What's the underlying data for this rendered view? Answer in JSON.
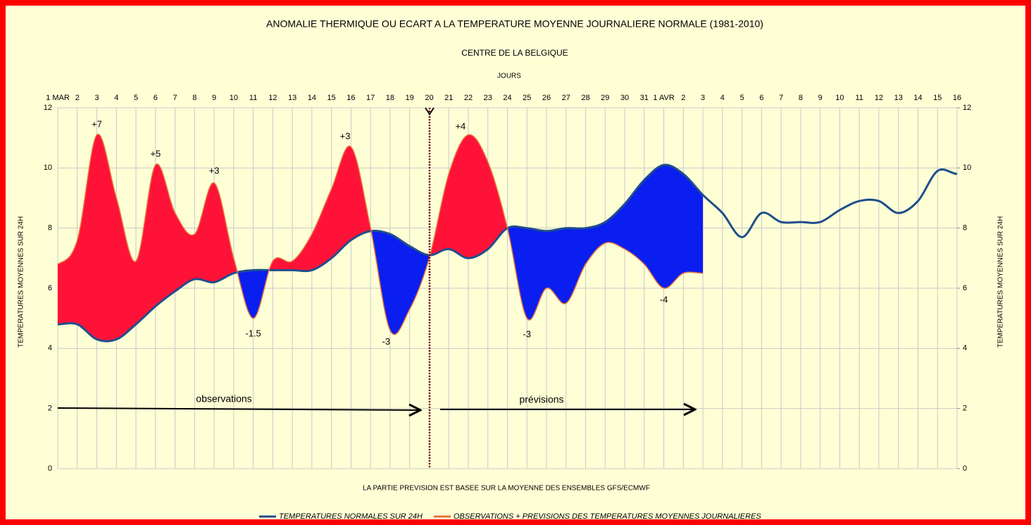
{
  "chart_data": {
    "type": "line",
    "title": "ANOMALIE THERMIQUE OU ECART A LA TEMPERATURE MOYENNE JOURNALIERE NORMALE (1981-2010)",
    "subtitle": "CENTRE DE LA BELGIQUE",
    "xlabel": "JOURS",
    "ylabel": "TEMPERATURES MOYENNES SUR 24H",
    "y2label": "TEMPERATURES MOYENNES SUR 24H",
    "footnote": "LA PARTIE PREVISION EST BASEE SUR LA MOYENNE DES ENSEMBLES GFS/ECMWF",
    "categories": [
      "1 MAR",
      "2",
      "3",
      "4",
      "5",
      "6",
      "7",
      "8",
      "9",
      "10",
      "11",
      "12",
      "13",
      "14",
      "15",
      "16",
      "17",
      "18",
      "19",
      "20",
      "21",
      "22",
      "23",
      "24",
      "25",
      "26",
      "27",
      "28",
      "29",
      "30",
      "31",
      "1 AVR",
      "2",
      "3",
      "4",
      "5",
      "6",
      "7",
      "8",
      "9",
      "10",
      "11",
      "12",
      "13",
      "14",
      "15",
      "16"
    ],
    "series": [
      {
        "name": "TEMPERATURES NORMALES SUR 24H",
        "color": "#1f4e8c",
        "values": [
          4.8,
          4.8,
          4.3,
          4.3,
          4.8,
          5.4,
          5.9,
          6.3,
          6.2,
          6.5,
          6.6,
          6.6,
          6.6,
          6.6,
          7.0,
          7.6,
          7.9,
          7.8,
          7.4,
          7.1,
          7.3,
          7.0,
          7.3,
          8.0,
          8.0,
          7.9,
          8.0,
          8.0,
          8.2,
          8.8,
          9.6,
          10.1,
          9.8,
          9.1,
          8.5,
          7.7,
          8.5,
          8.2,
          8.2,
          8.2,
          8.6,
          8.9,
          8.9,
          8.5,
          8.9,
          9.9,
          9.8
        ]
      },
      {
        "name": "OBSERVATIONS + PREVISIONS DES TEMPERATURES MOYENNES JOURNALIERES",
        "color": "#e8743b",
        "values": [
          6.8,
          7.6,
          11.1,
          9.0,
          6.9,
          10.1,
          8.5,
          7.8,
          9.5,
          7.0,
          5.0,
          6.9,
          6.9,
          7.8,
          9.3,
          10.7,
          8.0,
          4.6,
          5.3,
          7.0,
          9.8,
          11.1,
          10.2,
          8.0,
          5.0,
          6.0,
          5.5,
          6.8,
          7.5,
          7.3,
          6.8,
          6.0,
          6.5,
          6.5,
          null,
          null,
          null,
          null,
          null,
          null,
          null,
          null,
          null,
          null,
          null,
          null,
          null
        ]
      }
    ],
    "positive_fill": "#ff1238",
    "negative_fill": "#0a1ef0",
    "ylim": [
      0,
      12
    ],
    "yticks": [
      0,
      2,
      4,
      6,
      8,
      10,
      12
    ],
    "y2lim": [
      0,
      12
    ],
    "y2ticks": [
      0,
      2,
      4,
      6,
      8,
      10,
      12
    ],
    "grid": true,
    "annotations": [
      {
        "text": "+7",
        "x": 2,
        "y": 11.44,
        "color": "#e0102a"
      },
      {
        "text": "+5",
        "x": 5,
        "y": 10.45,
        "color": "#e0102a"
      },
      {
        "text": "+3",
        "x": 8,
        "y": 9.89,
        "color": "#e0102a"
      },
      {
        "text": "+3",
        "x": 14.7,
        "y": 11.04,
        "color": "#e0102a"
      },
      {
        "text": "+4",
        "x": 20.6,
        "y": 11.37,
        "color": "#e0102a"
      },
      {
        "text": "-1.5",
        "x": 10,
        "y": 4.48,
        "color": "#1030c8"
      },
      {
        "text": "-3",
        "x": 16.8,
        "y": 4.2,
        "color": "#1030c8"
      },
      {
        "text": "-3",
        "x": 24,
        "y": 4.45,
        "color": "#1030c8"
      },
      {
        "text": "-4",
        "x": 31,
        "y": 5.6,
        "color": "#1030c8"
      }
    ],
    "period_labels": [
      "observations",
      "prévisions"
    ]
  }
}
